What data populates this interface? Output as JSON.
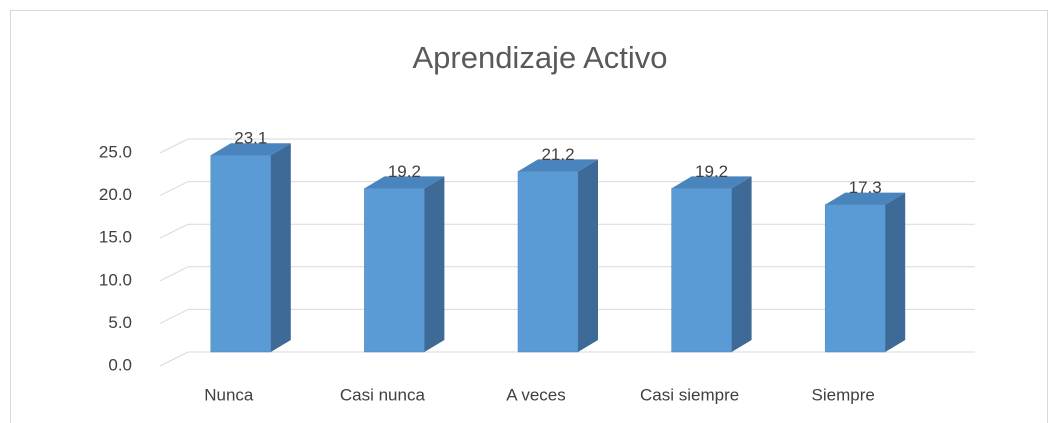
{
  "chart_data": {
    "type": "bar",
    "title": "Aprendizaje Activo",
    "categories": [
      "Nunca",
      "Casi nunca",
      "A veces",
      "Casi siempre",
      "Siempre"
    ],
    "values": [
      23.1,
      19.2,
      21.2,
      19.2,
      17.3
    ],
    "color": "#5b9bd5",
    "ylim": [
      0,
      25
    ],
    "yticks": [
      {
        "value": 0,
        "label": "0.0"
      },
      {
        "value": 5,
        "label": "5.0"
      },
      {
        "value": 10,
        "label": "10.0"
      },
      {
        "value": 15,
        "label": "15.0"
      },
      {
        "value": 20,
        "label": "20.0"
      },
      {
        "value": 25,
        "label": "25.0"
      }
    ],
    "grid": true
  }
}
